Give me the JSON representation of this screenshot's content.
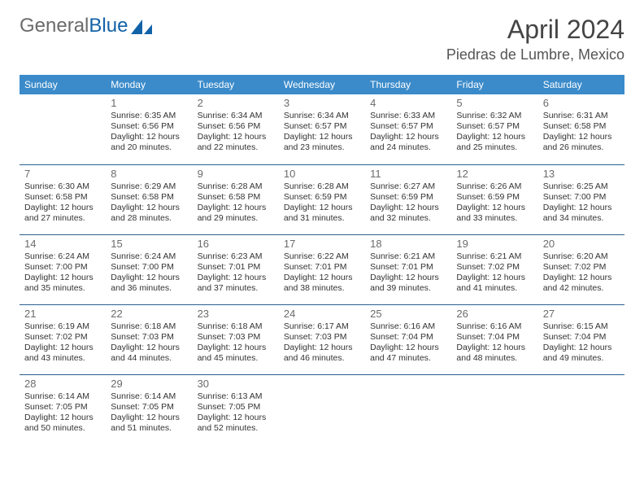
{
  "logo": {
    "text1": "General",
    "text2": "Blue"
  },
  "title": "April 2024",
  "location": "Piedras de Lumbre, Mexico",
  "colors": {
    "header_bg": "#3b8bca",
    "header_text": "#ffffff",
    "border": "#2a5f8f",
    "daynum": "#6b6b6b",
    "logo_gray": "#6b6b6b",
    "logo_blue": "#1262a8",
    "body_text": "#333333"
  },
  "weekdays": [
    "Sunday",
    "Monday",
    "Tuesday",
    "Wednesday",
    "Thursday",
    "Friday",
    "Saturday"
  ],
  "weeks": [
    [
      null,
      {
        "n": "1",
        "sr": "6:35 AM",
        "ss": "6:56 PM",
        "dl": "12 hours and 20 minutes."
      },
      {
        "n": "2",
        "sr": "6:34 AM",
        "ss": "6:56 PM",
        "dl": "12 hours and 22 minutes."
      },
      {
        "n": "3",
        "sr": "6:34 AM",
        "ss": "6:57 PM",
        "dl": "12 hours and 23 minutes."
      },
      {
        "n": "4",
        "sr": "6:33 AM",
        "ss": "6:57 PM",
        "dl": "12 hours and 24 minutes."
      },
      {
        "n": "5",
        "sr": "6:32 AM",
        "ss": "6:57 PM",
        "dl": "12 hours and 25 minutes."
      },
      {
        "n": "6",
        "sr": "6:31 AM",
        "ss": "6:58 PM",
        "dl": "12 hours and 26 minutes."
      }
    ],
    [
      {
        "n": "7",
        "sr": "6:30 AM",
        "ss": "6:58 PM",
        "dl": "12 hours and 27 minutes."
      },
      {
        "n": "8",
        "sr": "6:29 AM",
        "ss": "6:58 PM",
        "dl": "12 hours and 28 minutes."
      },
      {
        "n": "9",
        "sr": "6:28 AM",
        "ss": "6:58 PM",
        "dl": "12 hours and 29 minutes."
      },
      {
        "n": "10",
        "sr": "6:28 AM",
        "ss": "6:59 PM",
        "dl": "12 hours and 31 minutes."
      },
      {
        "n": "11",
        "sr": "6:27 AM",
        "ss": "6:59 PM",
        "dl": "12 hours and 32 minutes."
      },
      {
        "n": "12",
        "sr": "6:26 AM",
        "ss": "6:59 PM",
        "dl": "12 hours and 33 minutes."
      },
      {
        "n": "13",
        "sr": "6:25 AM",
        "ss": "7:00 PM",
        "dl": "12 hours and 34 minutes."
      }
    ],
    [
      {
        "n": "14",
        "sr": "6:24 AM",
        "ss": "7:00 PM",
        "dl": "12 hours and 35 minutes."
      },
      {
        "n": "15",
        "sr": "6:24 AM",
        "ss": "7:00 PM",
        "dl": "12 hours and 36 minutes."
      },
      {
        "n": "16",
        "sr": "6:23 AM",
        "ss": "7:01 PM",
        "dl": "12 hours and 37 minutes."
      },
      {
        "n": "17",
        "sr": "6:22 AM",
        "ss": "7:01 PM",
        "dl": "12 hours and 38 minutes."
      },
      {
        "n": "18",
        "sr": "6:21 AM",
        "ss": "7:01 PM",
        "dl": "12 hours and 39 minutes."
      },
      {
        "n": "19",
        "sr": "6:21 AM",
        "ss": "7:02 PM",
        "dl": "12 hours and 41 minutes."
      },
      {
        "n": "20",
        "sr": "6:20 AM",
        "ss": "7:02 PM",
        "dl": "12 hours and 42 minutes."
      }
    ],
    [
      {
        "n": "21",
        "sr": "6:19 AM",
        "ss": "7:02 PM",
        "dl": "12 hours and 43 minutes."
      },
      {
        "n": "22",
        "sr": "6:18 AM",
        "ss": "7:03 PM",
        "dl": "12 hours and 44 minutes."
      },
      {
        "n": "23",
        "sr": "6:18 AM",
        "ss": "7:03 PM",
        "dl": "12 hours and 45 minutes."
      },
      {
        "n": "24",
        "sr": "6:17 AM",
        "ss": "7:03 PM",
        "dl": "12 hours and 46 minutes."
      },
      {
        "n": "25",
        "sr": "6:16 AM",
        "ss": "7:04 PM",
        "dl": "12 hours and 47 minutes."
      },
      {
        "n": "26",
        "sr": "6:16 AM",
        "ss": "7:04 PM",
        "dl": "12 hours and 48 minutes."
      },
      {
        "n": "27",
        "sr": "6:15 AM",
        "ss": "7:04 PM",
        "dl": "12 hours and 49 minutes."
      }
    ],
    [
      {
        "n": "28",
        "sr": "6:14 AM",
        "ss": "7:05 PM",
        "dl": "12 hours and 50 minutes."
      },
      {
        "n": "29",
        "sr": "6:14 AM",
        "ss": "7:05 PM",
        "dl": "12 hours and 51 minutes."
      },
      {
        "n": "30",
        "sr": "6:13 AM",
        "ss": "7:05 PM",
        "dl": "12 hours and 52 minutes."
      },
      null,
      null,
      null,
      null
    ]
  ],
  "labels": {
    "sunrise": "Sunrise:",
    "sunset": "Sunset:",
    "daylight": "Daylight:"
  }
}
